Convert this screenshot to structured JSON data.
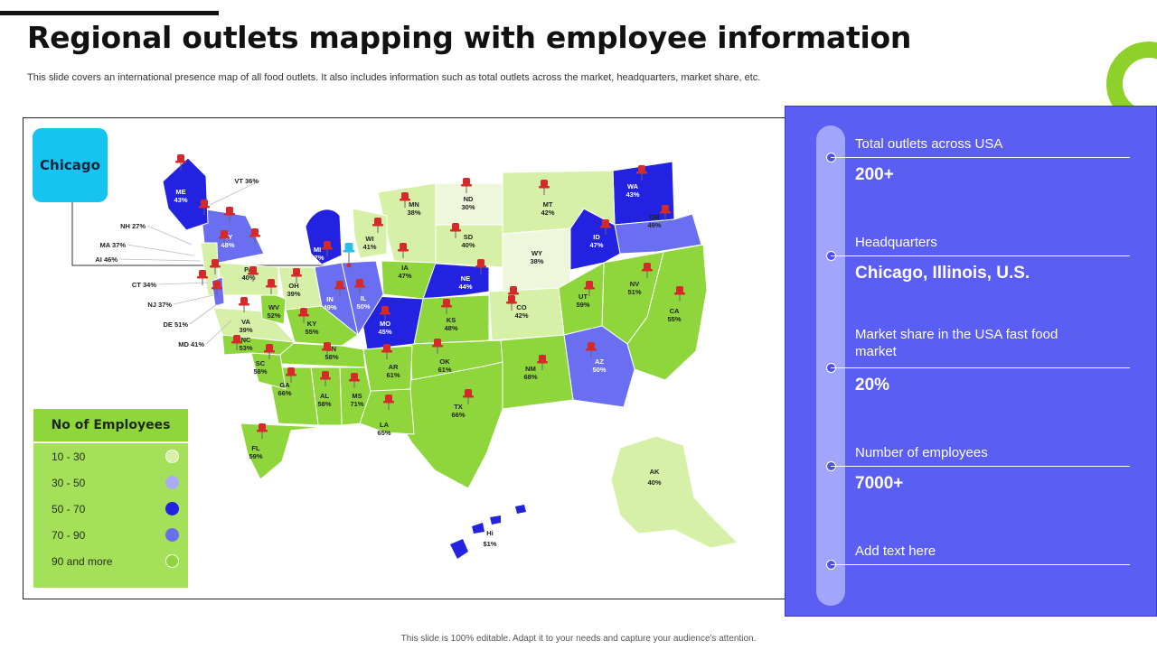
{
  "header": {
    "title": "Regional outlets mapping with employee information",
    "subtitle": "This slide covers an international presence map of all food outlets. It also includes information such as total outlets across the market, headquarters, market share, etc."
  },
  "city_badge": "Chicago",
  "colors": {
    "light_green": "#d6f0a8",
    "lightest_green": "#eef7dc",
    "green": "#8fd63d",
    "blue": "#2222e0",
    "periwinkle": "#6a6ef0",
    "panel": "#5b5ef2",
    "badge": "#17c4f0",
    "pin": "#d42a2a",
    "hq_pin": "#28c0e8"
  },
  "legend": {
    "title": "No of Employees",
    "items": [
      {
        "label": "10 - 30",
        "color": "#d6f0a8"
      },
      {
        "label": "30 - 50",
        "color": "#a9abf5"
      },
      {
        "label": "50 - 70",
        "color": "#2222e0"
      },
      {
        "label": "70 - 90",
        "color": "#6a6ef0"
      },
      {
        "label": "90 and more",
        "color": "#8fd63d"
      }
    ]
  },
  "states": [
    {
      "code": "WA",
      "pct": "43%"
    },
    {
      "code": "OR",
      "pct": "49%"
    },
    {
      "code": "CA",
      "pct": "55%"
    },
    {
      "code": "NV",
      "pct": "51%"
    },
    {
      "code": "ID",
      "pct": "47%"
    },
    {
      "code": "MT",
      "pct": "42%"
    },
    {
      "code": "WY",
      "pct": "38%"
    },
    {
      "code": "UT",
      "pct": "59%"
    },
    {
      "code": "AZ",
      "pct": "50%"
    },
    {
      "code": "CO",
      "pct": "42%"
    },
    {
      "code": "NM",
      "pct": "68%"
    },
    {
      "code": "ND",
      "pct": "30%"
    },
    {
      "code": "SD",
      "pct": "40%"
    },
    {
      "code": "NE",
      "pct": "44%"
    },
    {
      "code": "KS",
      "pct": "48%"
    },
    {
      "code": "OK",
      "pct": "61%"
    },
    {
      "code": "TX",
      "pct": "66%"
    },
    {
      "code": "MN",
      "pct": "38%"
    },
    {
      "code": "IA",
      "pct": "47%"
    },
    {
      "code": "MO",
      "pct": "45%"
    },
    {
      "code": "AR",
      "pct": "61%"
    },
    {
      "code": "LA",
      "pct": "65%"
    },
    {
      "code": "WI",
      "pct": "41%"
    },
    {
      "code": "IL",
      "pct": "50%"
    },
    {
      "code": "MI",
      "pct": "47%"
    },
    {
      "code": "IN",
      "pct": "49%"
    },
    {
      "code": "OH",
      "pct": "39%"
    },
    {
      "code": "KY",
      "pct": "55%"
    },
    {
      "code": "TN",
      "pct": "58%"
    },
    {
      "code": "MS",
      "pct": "71%"
    },
    {
      "code": "AL",
      "pct": "58%"
    },
    {
      "code": "GA",
      "pct": "66%"
    },
    {
      "code": "FL",
      "pct": "59%"
    },
    {
      "code": "SC",
      "pct": "58%"
    },
    {
      "code": "NC",
      "pct": "53%"
    },
    {
      "code": "VA",
      "pct": "39%"
    },
    {
      "code": "WV",
      "pct": "52%"
    },
    {
      "code": "PA",
      "pct": "40%"
    },
    {
      "code": "NY",
      "pct": "48%"
    },
    {
      "code": "ME",
      "pct": "43%"
    },
    {
      "code": "AK",
      "pct": "40%"
    },
    {
      "code": "Hi",
      "pct": "$1%"
    }
  ],
  "annotations": [
    {
      "text": "VT 36%"
    },
    {
      "text": "NH 27%"
    },
    {
      "text": "MA 37%"
    },
    {
      "text": "AI 46%"
    },
    {
      "text": "CT 34%"
    },
    {
      "text": "NJ 37%"
    },
    {
      "text": "DE 51%"
    },
    {
      "text": "MD 41%"
    }
  ],
  "panel": {
    "entries": [
      {
        "label": "Total outlets across USA",
        "value": "200+"
      },
      {
        "label": "Headquarters",
        "value": "Chicago, Illinois,  U.S."
      },
      {
        "label": "Market share in the USA fast food market",
        "value": "20%"
      },
      {
        "label": "Number of employees",
        "value": "7000+"
      },
      {
        "label": "Add text here",
        "value": ""
      }
    ]
  },
  "footer": "This slide is 100% editable. Adapt it to your needs and capture your audience's attention."
}
